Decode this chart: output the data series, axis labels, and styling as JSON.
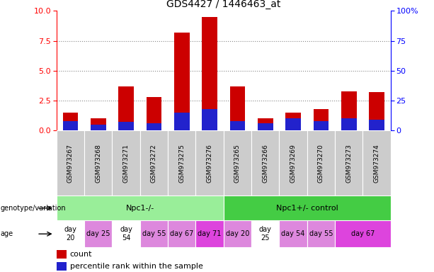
{
  "title": "GDS4427 / 1446463_at",
  "samples": [
    "GSM973267",
    "GSM973268",
    "GSM973271",
    "GSM973272",
    "GSM973275",
    "GSM973276",
    "GSM973265",
    "GSM973266",
    "GSM973269",
    "GSM973270",
    "GSM973273",
    "GSM973274"
  ],
  "count_values": [
    1.5,
    1.0,
    3.7,
    2.8,
    8.2,
    9.5,
    3.7,
    1.0,
    1.5,
    1.8,
    3.3,
    3.2
  ],
  "percentile_values_scaled": [
    0.8,
    0.5,
    0.7,
    0.6,
    1.5,
    1.8,
    0.8,
    0.6,
    1.0,
    0.8,
    1.0,
    0.9
  ],
  "bar_width": 0.55,
  "ylim_left": [
    0,
    10
  ],
  "ylim_right": [
    0,
    100
  ],
  "yticks_left": [
    0,
    2.5,
    5,
    7.5,
    10
  ],
  "yticks_right": [
    0,
    25,
    50,
    75,
    100
  ],
  "count_color": "#cc0000",
  "percentile_color": "#2222cc",
  "grid_color": "#888888",
  "sample_bg_color": "#cccccc",
  "group1_label": "Npc1-/-",
  "group2_label": "Npc1+/- control",
  "group1_color": "#99ee99",
  "group2_color": "#44cc44",
  "genotype_label": "genotype/variation",
  "age_label": "age",
  "age_data": [
    [
      0,
      1,
      "day\n20",
      "#ffffff"
    ],
    [
      1,
      1,
      "day 25",
      "#dd88dd"
    ],
    [
      2,
      1,
      "day\n54",
      "#ffffff"
    ],
    [
      3,
      1,
      "day 55",
      "#dd88dd"
    ],
    [
      4,
      1,
      "day 67",
      "#dd88dd"
    ],
    [
      5,
      1,
      "day 71",
      "#dd44dd"
    ],
    [
      6,
      1,
      "day 20",
      "#dd88dd"
    ],
    [
      7,
      1,
      "day\n25",
      "#ffffff"
    ],
    [
      8,
      1,
      "day 54",
      "#dd88dd"
    ],
    [
      9,
      1,
      "day 55",
      "#dd88dd"
    ],
    [
      10,
      2,
      "day 67",
      "#dd44dd"
    ]
  ]
}
